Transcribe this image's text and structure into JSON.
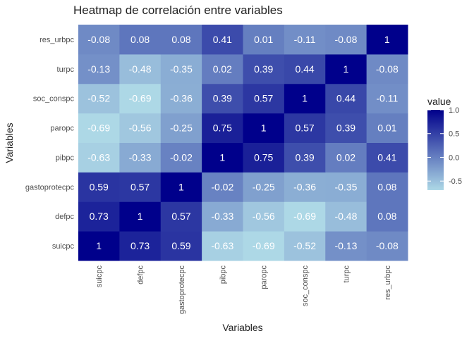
{
  "chart_data": {
    "type": "heatmap",
    "title": "Heatmap de correlación entre variables",
    "xlabel": "Variables",
    "ylabel": "Variables",
    "x_categories": [
      "suicpc",
      "defpc",
      "gastoprotecpc",
      "pibpc",
      "paropc",
      "soc_conspc",
      "turpc",
      "res_urbpc"
    ],
    "y_categories": [
      "suicpc",
      "defpc",
      "gastoprotecpc",
      "pibpc",
      "paropc",
      "soc_conspc",
      "turpc",
      "res_urbpc"
    ],
    "values": [
      [
        1,
        0.73,
        0.59,
        -0.63,
        -0.69,
        -0.52,
        -0.13,
        -0.08
      ],
      [
        0.73,
        1,
        0.57,
        -0.33,
        -0.56,
        -0.69,
        -0.48,
        0.08
      ],
      [
        0.59,
        0.57,
        1,
        -0.02,
        -0.25,
        -0.36,
        -0.35,
        0.08
      ],
      [
        -0.63,
        -0.33,
        -0.02,
        1,
        0.75,
        0.39,
        0.02,
        0.41
      ],
      [
        -0.69,
        -0.56,
        -0.25,
        0.75,
        1,
        0.57,
        0.39,
        0.01
      ],
      [
        -0.52,
        -0.69,
        -0.36,
        0.39,
        0.57,
        1,
        0.44,
        -0.11
      ],
      [
        -0.13,
        -0.48,
        -0.35,
        0.02,
        0.39,
        0.44,
        1,
        -0.08
      ],
      [
        -0.08,
        0.08,
        0.08,
        0.41,
        0.01,
        -0.11,
        -0.08,
        1
      ]
    ],
    "value_labels": [
      [
        "1",
        "0.73",
        "0.59",
        "-0.63",
        "-0.69",
        "-0.52",
        "-0.13",
        "-0.08"
      ],
      [
        "0.73",
        "1",
        "0.57",
        "-0.33",
        "-0.56",
        "-0.69",
        "-0.48",
        "0.08"
      ],
      [
        "0.59",
        "0.57",
        "1",
        "-0.02",
        "-0.25",
        "-0.36",
        "-0.35",
        "0.08"
      ],
      [
        "-0.63",
        "-0.33",
        "-0.02",
        "1",
        "0.75",
        "0.39",
        "0.02",
        "0.41"
      ],
      [
        "-0.69",
        "-0.56",
        "-0.25",
        "0.75",
        "1",
        "0.57",
        "0.39",
        "0.01"
      ],
      [
        "-0.52",
        "-0.69",
        "-0.36",
        "0.39",
        "0.57",
        "1",
        "0.44",
        "-0.11"
      ],
      [
        "-0.13",
        "-0.48",
        "-0.35",
        "0.02",
        "0.39",
        "0.44",
        "1",
        "-0.08"
      ],
      [
        "-0.08",
        "0.08",
        "0.08",
        "0.41",
        "0.01",
        "-0.11",
        "-0.08",
        "1"
      ]
    ],
    "legend": {
      "title": "value",
      "ticks": [
        1.0,
        0.5,
        0.0,
        -0.5
      ],
      "tick_labels": [
        "1.0",
        "0.5",
        "0.0",
        "-0.5"
      ],
      "range": [
        -0.69,
        1
      ],
      "placement": "right"
    },
    "color_low": "#add8e6",
    "color_high": "#00008b"
  }
}
